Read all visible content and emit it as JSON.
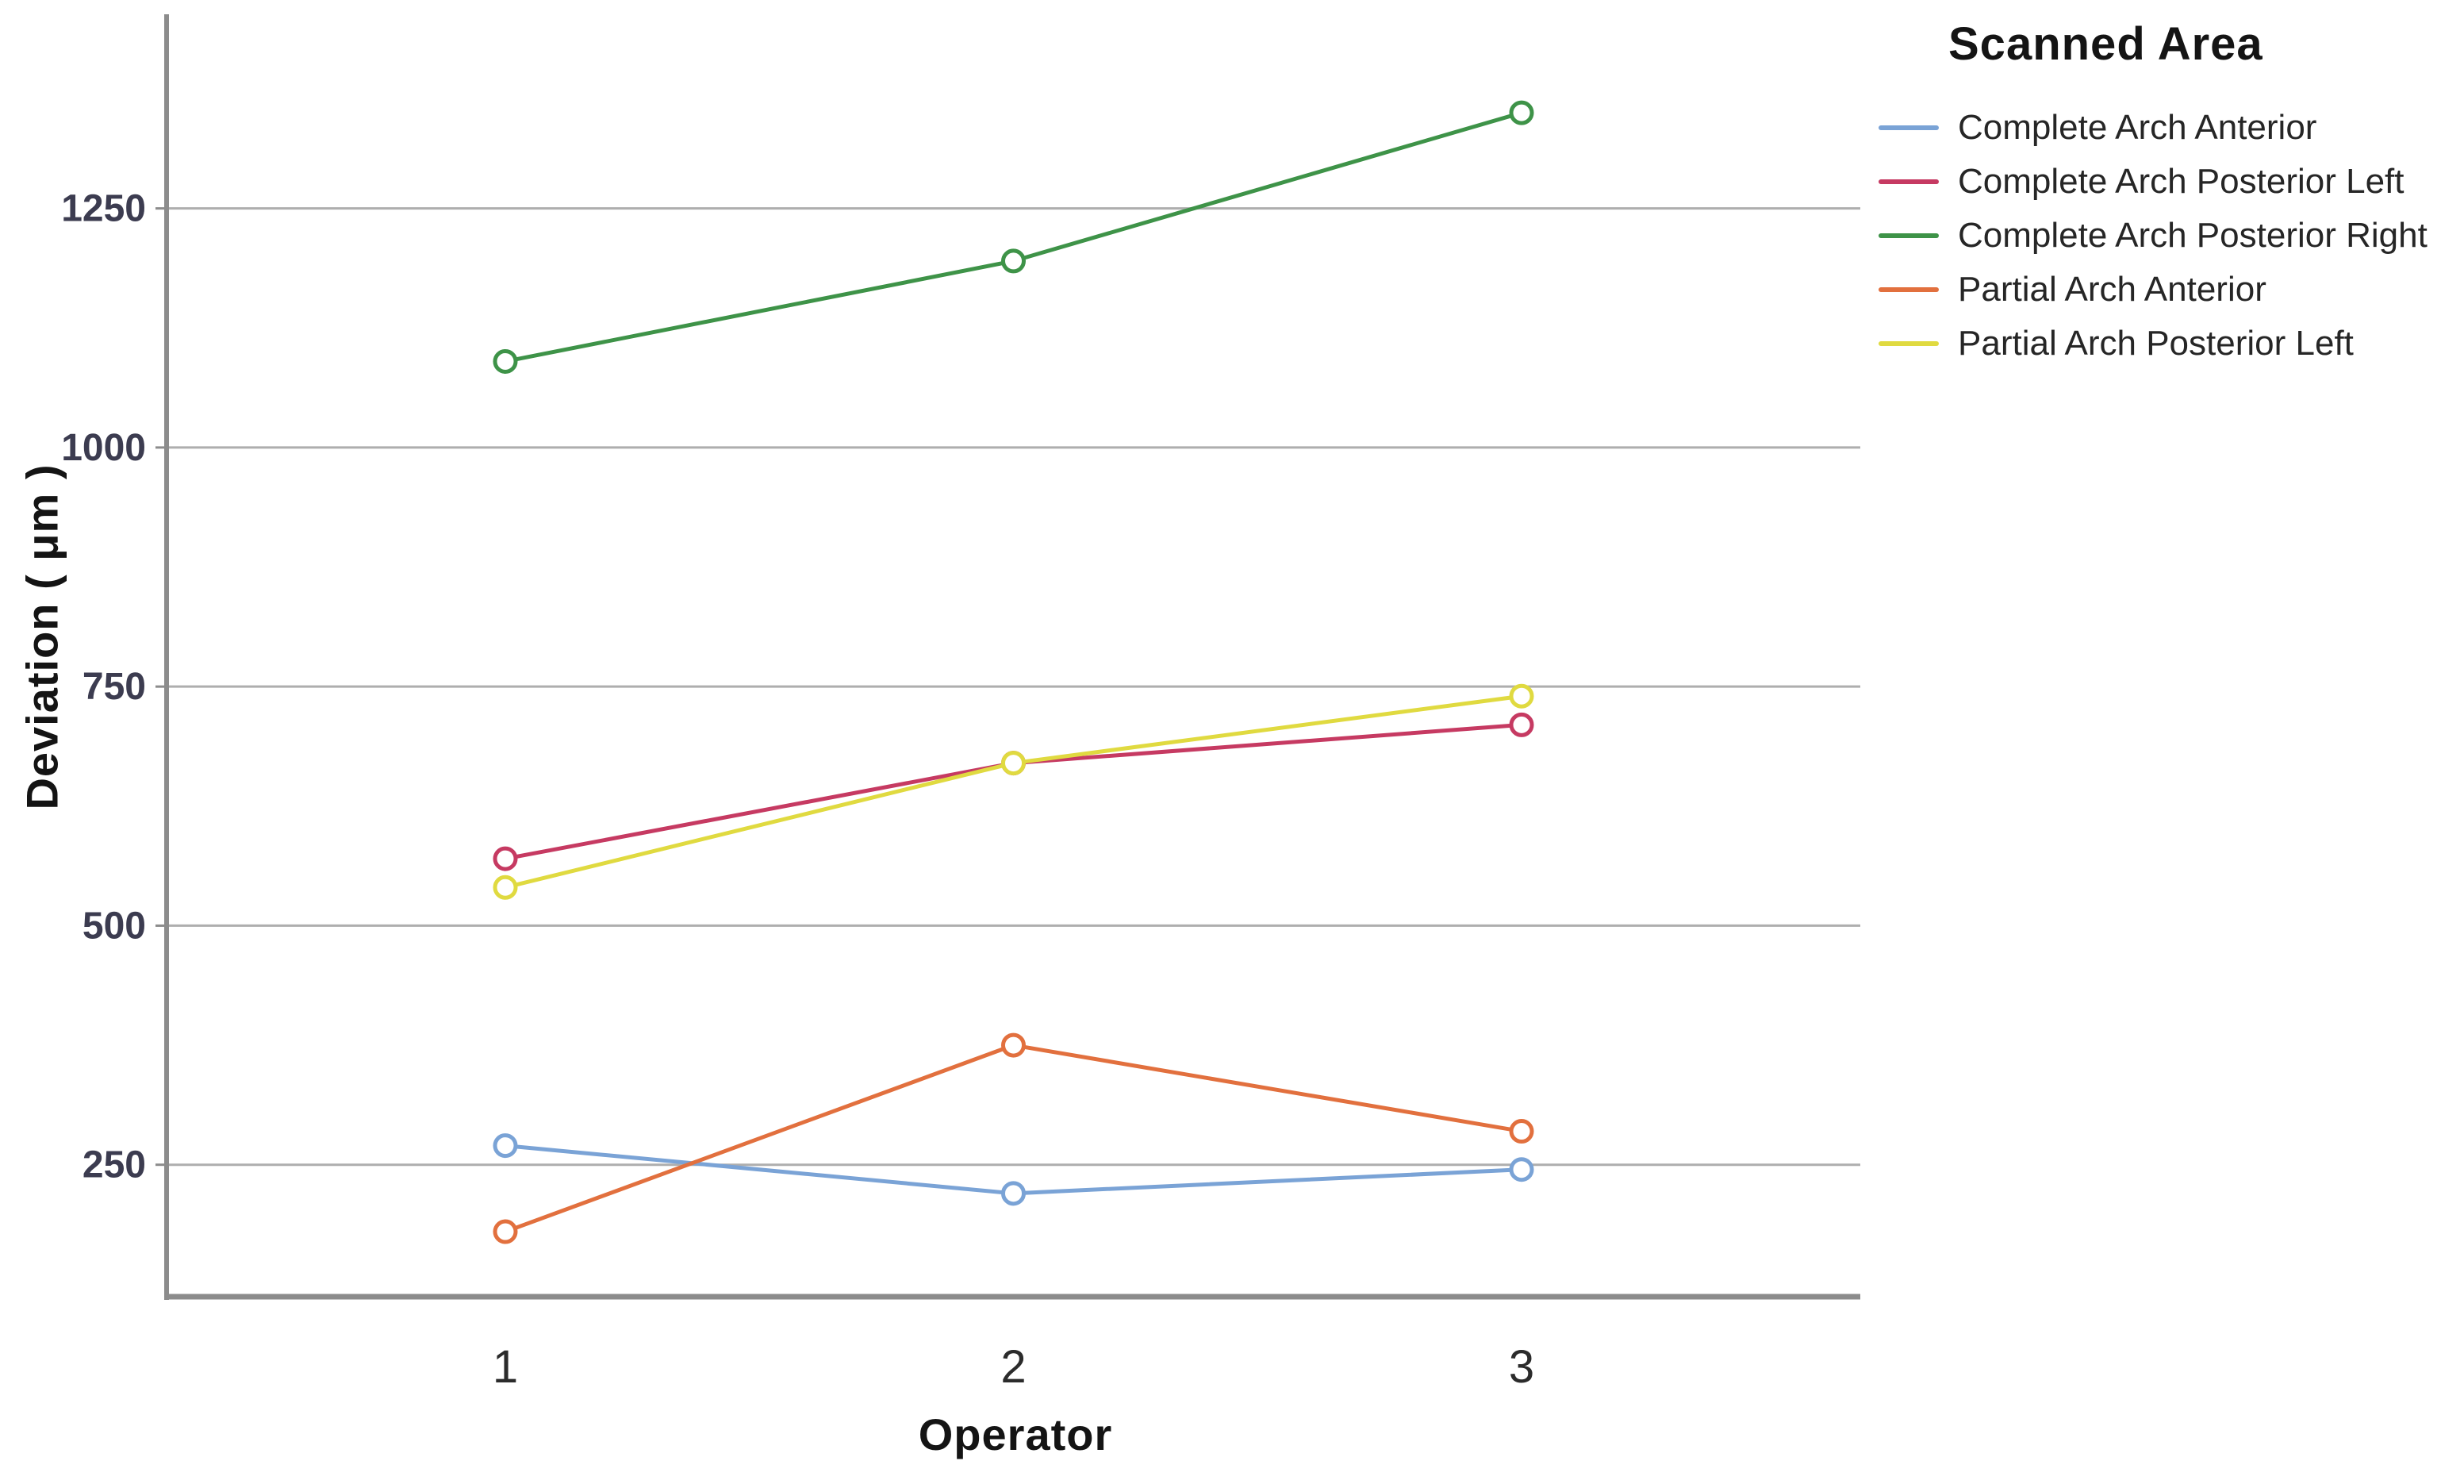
{
  "chart_data": {
    "type": "line",
    "legend_title": "Scanned Area",
    "x_axis_label": "Operator",
    "y_axis_label": "Deviation ( μm )",
    "categories": [
      "1",
      "2",
      "3"
    ],
    "y_ticks": [
      250,
      500,
      750,
      1000,
      1250
    ],
    "ylim": [
      112,
      1453
    ],
    "grid": true,
    "legend_position": "right",
    "series": [
      {
        "name": "Complete Arch Anterior",
        "color": "#7AA3D6",
        "values": [
          270,
          220,
          245
        ]
      },
      {
        "name": "Complete Arch Posterior Left",
        "color": "#C63A62",
        "values": [
          570,
          670,
          710
        ]
      },
      {
        "name": "Complete Arch Posterior Right",
        "color": "#3E9348",
        "values": [
          1090,
          1195,
          1350
        ]
      },
      {
        "name": "Partial Arch Anterior",
        "color": "#E2703E",
        "values": [
          180,
          375,
          285
        ]
      },
      {
        "name": "Partial Arch Posterior Left",
        "color": "#E0DA40",
        "values": [
          540,
          670,
          740
        ]
      }
    ],
    "colors": {
      "background": "#ffffff",
      "axis": "#8c8c8c",
      "grid": "#aeaeae",
      "tick_label": "#3c3c50",
      "x_tick_label": "#2b2b2b",
      "text": "#141414",
      "marker_fill": "#ffffff"
    }
  }
}
